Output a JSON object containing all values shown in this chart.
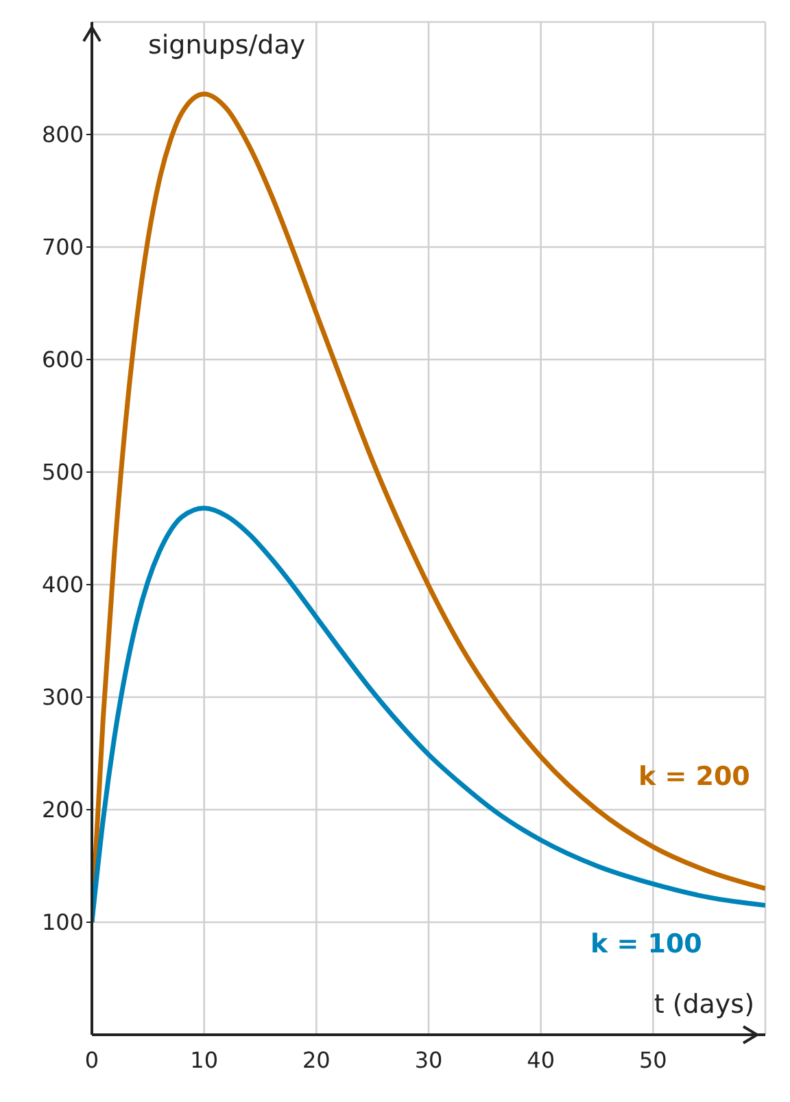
{
  "chart_data": {
    "type": "line",
    "xlabel": "t (days)",
    "ylabel": "signups/day",
    "x": [
      0,
      1,
      2,
      3,
      4,
      5,
      6,
      7,
      8,
      10,
      12,
      14,
      16,
      18,
      20,
      22,
      25,
      28,
      30,
      33,
      36,
      40,
      45,
      50,
      55,
      60
    ],
    "series": [
      {
        "name": "k = 200",
        "color": "#c06a00",
        "values": [
          100,
          281,
          427,
          544,
          636,
          707,
          759,
          795,
          819,
          836,
          823,
          790,
          746,
          695,
          641,
          588,
          510,
          441,
          399,
          343,
          297,
          247,
          200,
          167,
          145,
          130
        ]
      },
      {
        "name": "k = 100",
        "color": "#0083b9",
        "values": [
          100,
          191,
          264,
          322,
          368,
          403,
          429,
          448,
          460,
          468,
          461,
          445,
          423,
          398,
          371,
          344,
          305,
          270,
          249,
          222,
          198,
          173,
          150,
          134,
          122,
          115
        ]
      }
    ],
    "xlim": [
      0,
      60
    ],
    "xticks": [
      0,
      10,
      20,
      30,
      40,
      50
    ],
    "ylim": [
      0,
      900
    ],
    "yticks": [
      100,
      200,
      300,
      400,
      500,
      600,
      700,
      800
    ],
    "grid": true,
    "marker": "none",
    "line_style": "solid"
  }
}
